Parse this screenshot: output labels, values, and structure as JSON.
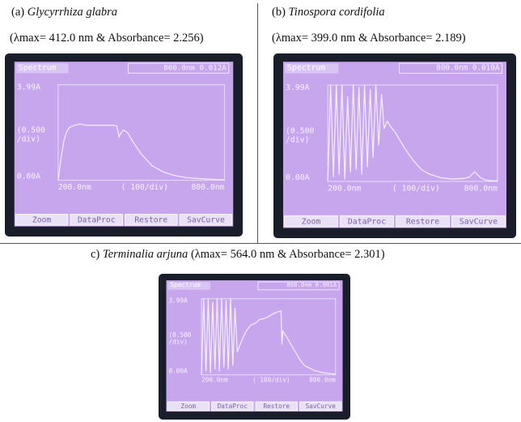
{
  "captions": {
    "a": {
      "prefix": "(a) ",
      "name": "Glycyrrhiza glabra",
      "detail": "(λmax= 412.0 nm & Absorbance= 2.256)"
    },
    "b": {
      "prefix": "(b) ",
      "name": "Tinospora cordifolia",
      "detail": "(λmax= 399.0 nm & Absorbance= 2.189)"
    },
    "c": {
      "prefix": "c) ",
      "name": "Terminalia arjuna",
      "detail": " (λmax= 564.0 nm & Absorbance= 2.301)"
    }
  },
  "screen": {
    "title": "Spectrum",
    "readout_a": "800.0nm  0.012A",
    "readout_b": "800.0nm  0.010A",
    "readout_c": "800.0nm  0.001A",
    "y_top": "3.99A",
    "y_mid": "0.500",
    "y_mid_unit": "/div)",
    "y_mid_open": "(",
    "y_bottom": "0.00A",
    "x_left": "200.0nm",
    "x_div": "( 100/div)",
    "x_right": "800.0nm",
    "buttons": [
      "Zoom",
      "DataProc",
      "Restore",
      "SavCurve"
    ]
  },
  "colors": {
    "plot_bg": "#c8a6ee",
    "curve": "#f4f0ff",
    "bezel": "#1a1d2a",
    "button_bg": "#e9e2f6"
  },
  "chart_data": [
    {
      "type": "line",
      "panel": "a",
      "xlabel": "",
      "ylabel": "",
      "xlim": [
        200,
        800
      ],
      "ylim": [
        0.0,
        3.99
      ],
      "x": [
        200,
        210,
        220,
        230,
        240,
        260,
        280,
        300,
        340,
        380,
        400,
        412,
        420,
        425,
        435,
        450,
        470,
        500,
        540,
        580,
        620,
        660,
        700,
        740,
        780,
        800
      ],
      "y": [
        0.0,
        0.9,
        1.6,
        2.0,
        2.2,
        2.3,
        2.35,
        2.3,
        2.3,
        2.3,
        2.3,
        2.256,
        1.8,
        1.95,
        2.1,
        2.0,
        1.6,
        1.1,
        0.6,
        0.35,
        0.2,
        0.12,
        0.08,
        0.05,
        0.03,
        0.02
      ]
    },
    {
      "type": "line",
      "panel": "b",
      "xlabel": "",
      "ylabel": "",
      "xlim": [
        200,
        800
      ],
      "ylim": [
        0.0,
        3.99
      ],
      "x": [
        200,
        210,
        220,
        230,
        240,
        250,
        260,
        270,
        280,
        290,
        300,
        310,
        320,
        330,
        340,
        350,
        360,
        370,
        380,
        390,
        399,
        410,
        420,
        440,
        470,
        500,
        530,
        560,
        600,
        640,
        680,
        700,
        720,
        740,
        760,
        780,
        800
      ],
      "y": [
        0.0,
        3.99,
        0.2,
        3.99,
        0.3,
        3.99,
        0.1,
        3.5,
        0.4,
        3.99,
        0.5,
        3.9,
        0.3,
        3.99,
        0.6,
        3.8,
        1.0,
        3.99,
        1.5,
        3.6,
        2.189,
        2.5,
        2.3,
        2.0,
        1.4,
        0.9,
        0.5,
        0.3,
        0.15,
        0.1,
        0.12,
        0.18,
        0.4,
        0.15,
        0.05,
        0.03,
        0.02
      ]
    },
    {
      "type": "line",
      "panel": "c",
      "xlabel": "",
      "ylabel": "",
      "xlim": [
        200,
        800
      ],
      "ylim": [
        0.0,
        3.99
      ],
      "x": [
        200,
        210,
        220,
        230,
        240,
        250,
        260,
        270,
        280,
        290,
        300,
        310,
        320,
        330,
        340,
        350,
        360,
        380,
        400,
        420,
        440,
        460,
        480,
        500,
        520,
        540,
        556,
        560,
        564,
        580,
        600,
        620,
        640,
        660,
        700,
        740,
        780,
        800
      ],
      "y": [
        0.0,
        3.99,
        0.2,
        3.99,
        0.1,
        3.8,
        0.3,
        3.99,
        0.2,
        3.99,
        0.4,
        3.9,
        0.3,
        3.99,
        0.5,
        3.5,
        1.2,
        1.8,
        2.3,
        2.6,
        2.7,
        2.9,
        2.95,
        3.05,
        3.2,
        3.3,
        3.35,
        1.6,
        2.301,
        2.0,
        1.6,
        1.2,
        0.8,
        0.5,
        0.25,
        0.12,
        0.06,
        0.04
      ]
    }
  ]
}
